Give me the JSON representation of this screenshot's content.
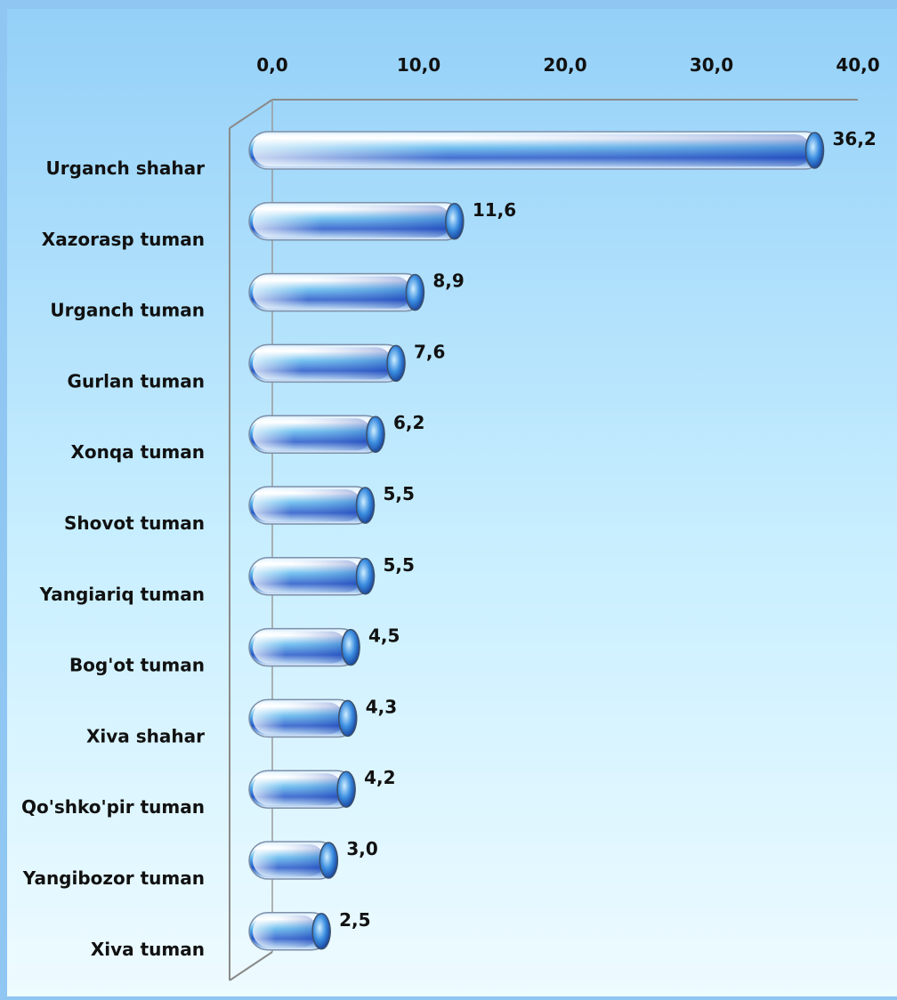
{
  "chart_data": {
    "type": "bar",
    "orientation": "horizontal",
    "title": "",
    "xlabel": "",
    "ylabel": "",
    "xlim": [
      0,
      40
    ],
    "ticks": [
      0,
      10,
      20,
      30,
      40
    ],
    "tick_labels": [
      "0,0",
      "10,0",
      "20,0",
      "30,0",
      "40,0"
    ],
    "axis_position": "top",
    "grid": false,
    "legend": "none",
    "categories": [
      "Urganch shahar",
      "Xazorasp tuman",
      "Urganch tuman",
      "Gurlan tuman",
      "Xonqa tuman",
      "Shovot tuman",
      "Yangiariq tuman",
      "Bog'ot tuman",
      "Xiva shahar",
      "Qo'shko'pir tuman",
      "Yangibozor tuman",
      "Xiva tuman"
    ],
    "values": [
      36.2,
      11.6,
      8.9,
      7.6,
      6.2,
      5.5,
      5.5,
      4.5,
      4.3,
      4.2,
      3.0,
      2.5
    ],
    "value_labels": [
      "36,2",
      "11,6",
      "8,9",
      "7,6",
      "6,2",
      "5,5",
      "5,5",
      "4,5",
      "4,3",
      "4,2",
      "3,0",
      "2,5"
    ],
    "colors": {
      "frame": "#8fc6f2",
      "plot_top": "#99d4f8",
      "plot_bottom": "#e6f8ff",
      "bar_light": "#e8f6ff",
      "bar_mid": "#4aa8e8",
      "bar_dark": "#1a3fb5",
      "label": "#111111"
    }
  }
}
